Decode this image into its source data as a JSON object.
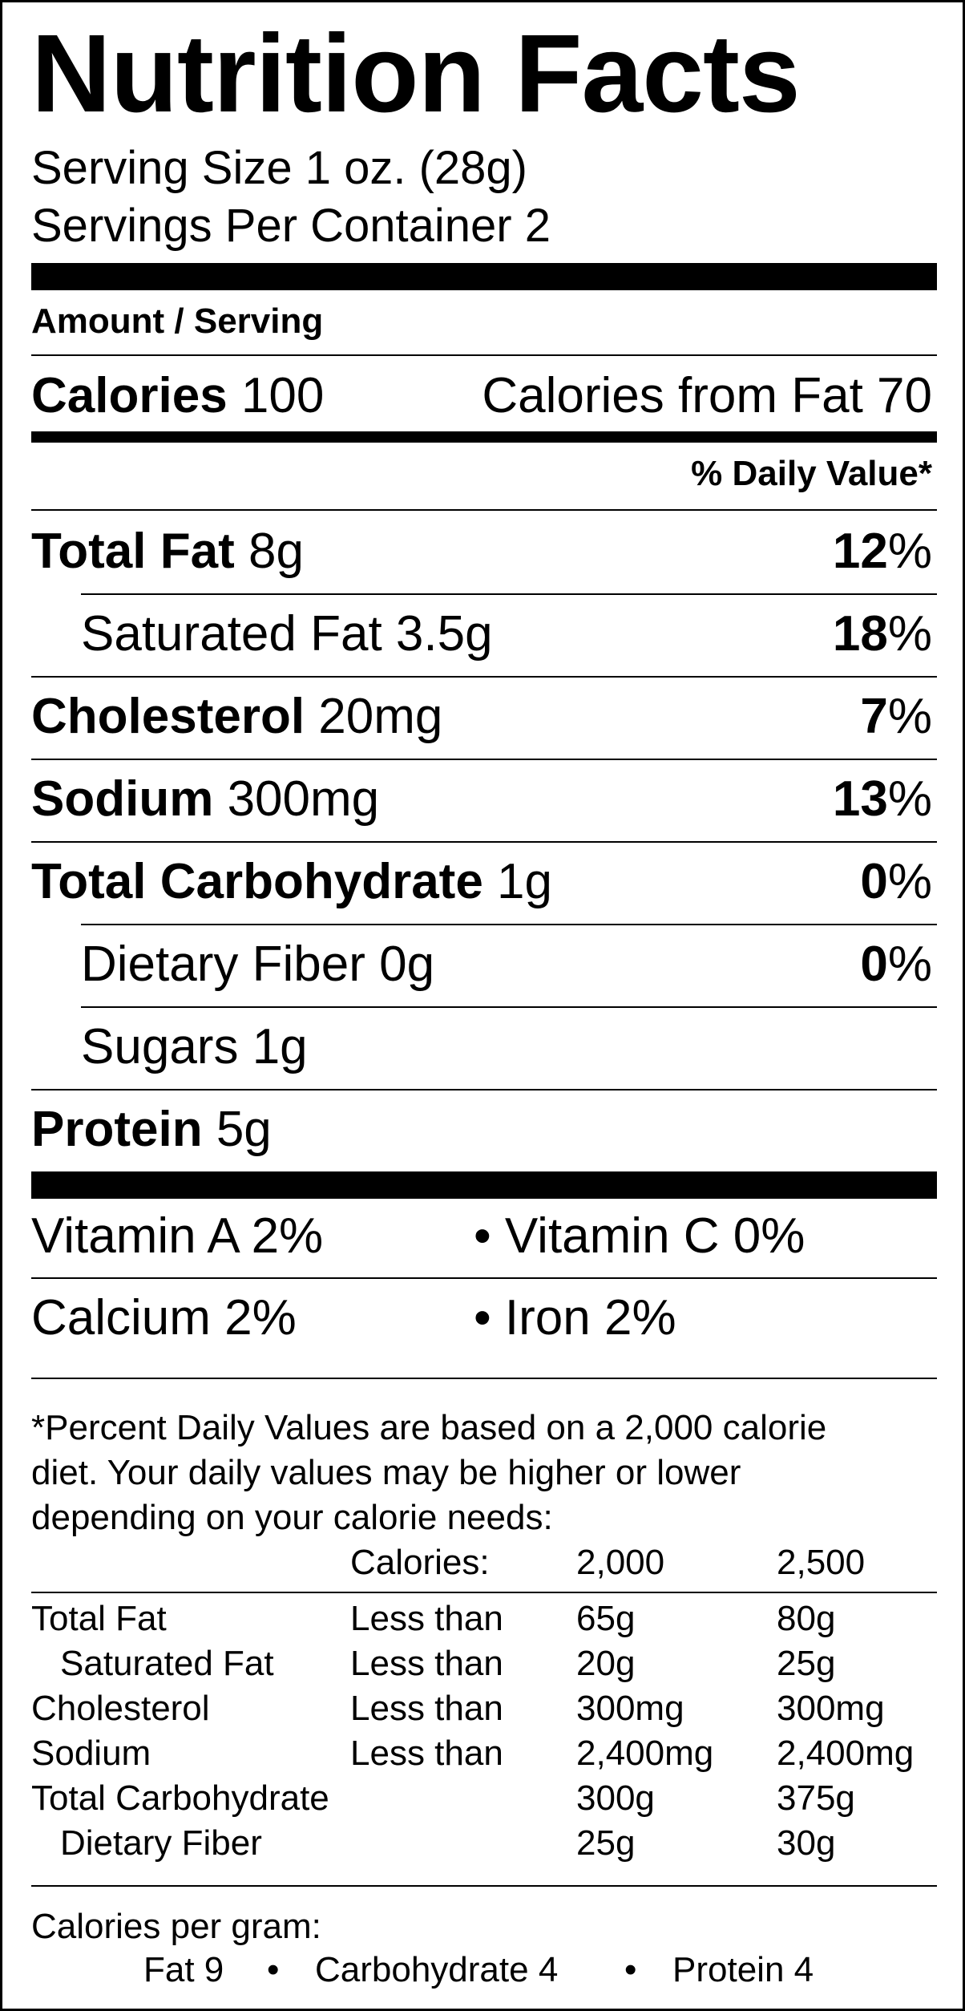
{
  "title": "Nutrition Facts",
  "serving_size": "Serving Size 1 oz. (28g)",
  "servings_per_container": "Servings Per Container 2",
  "amount_per_serving": "Amount / Serving",
  "calories": {
    "label": "Calories",
    "value": "100",
    "from_fat": "Calories from Fat 70"
  },
  "daily_value_header": "% Daily Value*",
  "nutrients": [
    {
      "name": "Total Fat",
      "amount": "8g",
      "pct": "12",
      "bold": true
    },
    {
      "name": "Saturated Fat",
      "amount": "3.5g",
      "pct": "18",
      "bold": false
    },
    {
      "name": "Cholesterol",
      "amount": "20mg",
      "pct": "7",
      "bold": true
    },
    {
      "name": "Sodium",
      "amount": "300mg",
      "pct": "13",
      "bold": true
    },
    {
      "name": "Total Carbohydrate",
      "amount": "1g",
      "pct": "0",
      "bold": true
    },
    {
      "name": "Dietary Fiber",
      "amount": "0g",
      "pct": "0",
      "bold": false
    },
    {
      "name": "Sugars",
      "amount": "1g",
      "pct": "",
      "bold": false
    },
    {
      "name": "Protein",
      "amount": "5g",
      "pct": "",
      "bold": true
    }
  ],
  "pct_sign": "%",
  "vitamins": [
    {
      "left": "Vitamin A 2%",
      "right": "• Vitamin C 0%"
    },
    {
      "left": "Calcium 2%",
      "right": "• Iron 2%"
    }
  ],
  "footnote": [
    "*Percent Daily Values are based on a 2,000 calorie",
    "diet. Your daily values may be higher or lower",
    "depending on your calorie needs:"
  ],
  "footnote_table": {
    "header": [
      "",
      "Calories:",
      "2,000",
      "2,500"
    ],
    "rows": [
      [
        "Total Fat",
        "Less than",
        "65g",
        "80g"
      ],
      [
        "Saturated Fat",
        "Less than",
        "20g",
        "25g"
      ],
      [
        "Cholesterol",
        "Less than",
        "300mg",
        "300mg"
      ],
      [
        "Sodium",
        "Less than",
        "2,400mg",
        "2,400mg"
      ],
      [
        "Total Carbohydrate",
        "",
        "300g",
        "375g"
      ],
      [
        "Dietary Fiber",
        "",
        "25g",
        "30g"
      ]
    ]
  },
  "calories_per_gram": {
    "label": "Calories per gram:",
    "fat": "Fat 9",
    "carb": "Carbohydrate 4",
    "protein": "Protein 4",
    "bullet": "•"
  }
}
